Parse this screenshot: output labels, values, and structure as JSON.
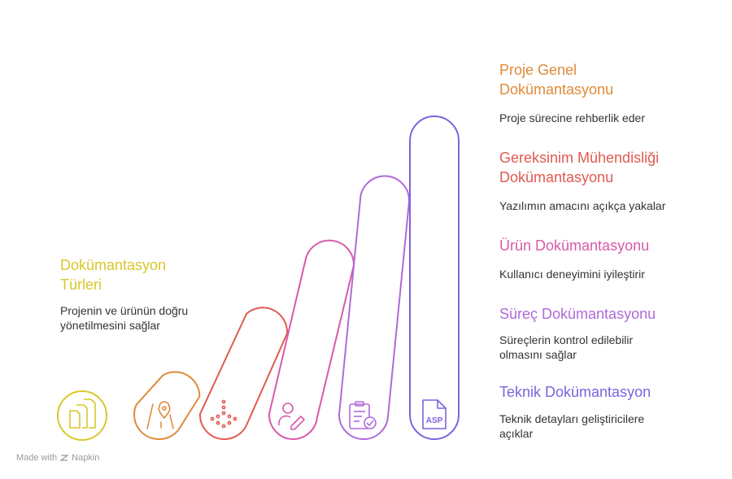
{
  "colors": {
    "yellow": "#D9C72B",
    "orange": "#E08A3A",
    "red": "#E05A50",
    "pink": "#D85AA8",
    "purple": "#B06AD9",
    "violet": "#7E62E0",
    "text": "#333333",
    "footer": "#9A9A9A"
  },
  "left_block": {
    "title": "Dokümantasyon Türleri",
    "description": "Projenin ve ürünün doğru yönetilmesini sağlar"
  },
  "items": [
    {
      "title": "Proje Genel Dokümantasyonu",
      "description": "Proje sürecine rehberlik eder",
      "icon": "asp-file-icon"
    },
    {
      "title": "Gereksinim Mühendisliği Dokümantasyonu",
      "description": "Yazılımın amacını açıkça yakalar",
      "icon": "clipboard-check-icon"
    },
    {
      "title": "Ürün Dokümantasyonu",
      "description": "Kullanıcı deneyimini iyileştirir",
      "icon": "user-edit-icon"
    },
    {
      "title": "Süreç Dokümantasyonu",
      "description": "Süreçlerin kontrol edilebilir olmasını sağlar",
      "icon": "process-flow-icon"
    },
    {
      "title": "Teknik Dokümantasyon",
      "description": "Teknik detayları geliştiricilere açıklar",
      "icon": "map-pin-icon"
    }
  ],
  "footer": {
    "made_with": "Made with",
    "brand": "Napkin"
  }
}
